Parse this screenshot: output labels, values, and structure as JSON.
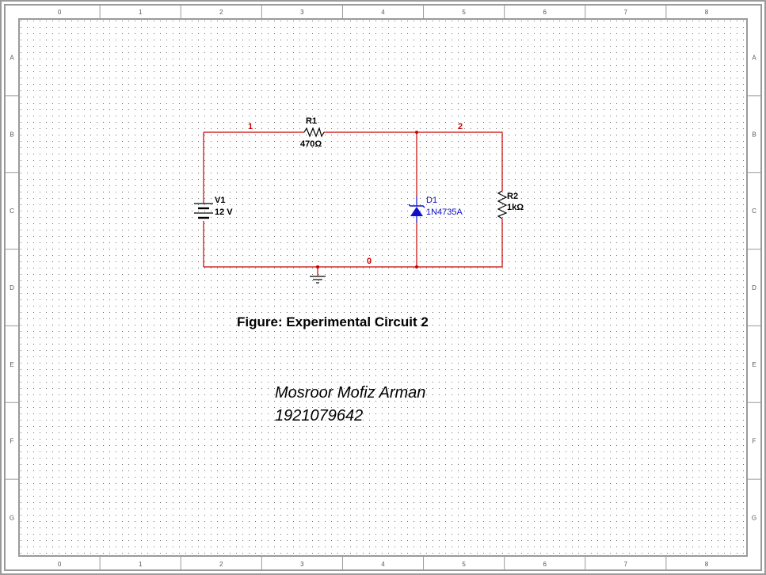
{
  "border": {
    "columns": [
      "0",
      "1",
      "2",
      "3",
      "4",
      "5",
      "6",
      "7",
      "8"
    ],
    "rows": [
      "A",
      "B",
      "C",
      "D",
      "E",
      "F",
      "G"
    ]
  },
  "circuit": {
    "nets": {
      "n1": "1",
      "n2": "2",
      "n0": "0"
    },
    "r1": {
      "ref": "R1",
      "value": "470Ω"
    },
    "r2": {
      "ref": "R2",
      "value": "1kΩ"
    },
    "v1": {
      "ref": "V1",
      "value": "12 V"
    },
    "d1": {
      "ref": "D1",
      "value": "1N4735A"
    }
  },
  "caption": "Figure: Experimental Circuit 2",
  "author": {
    "name": "Mosroor Mofiz Arman",
    "id": "1921079642"
  },
  "colors": {
    "wire": "#cc0000",
    "diode": "#1010cc",
    "component": "#000000",
    "grid_dot": "#6a6a6a",
    "frame": "#9a9a9a"
  }
}
